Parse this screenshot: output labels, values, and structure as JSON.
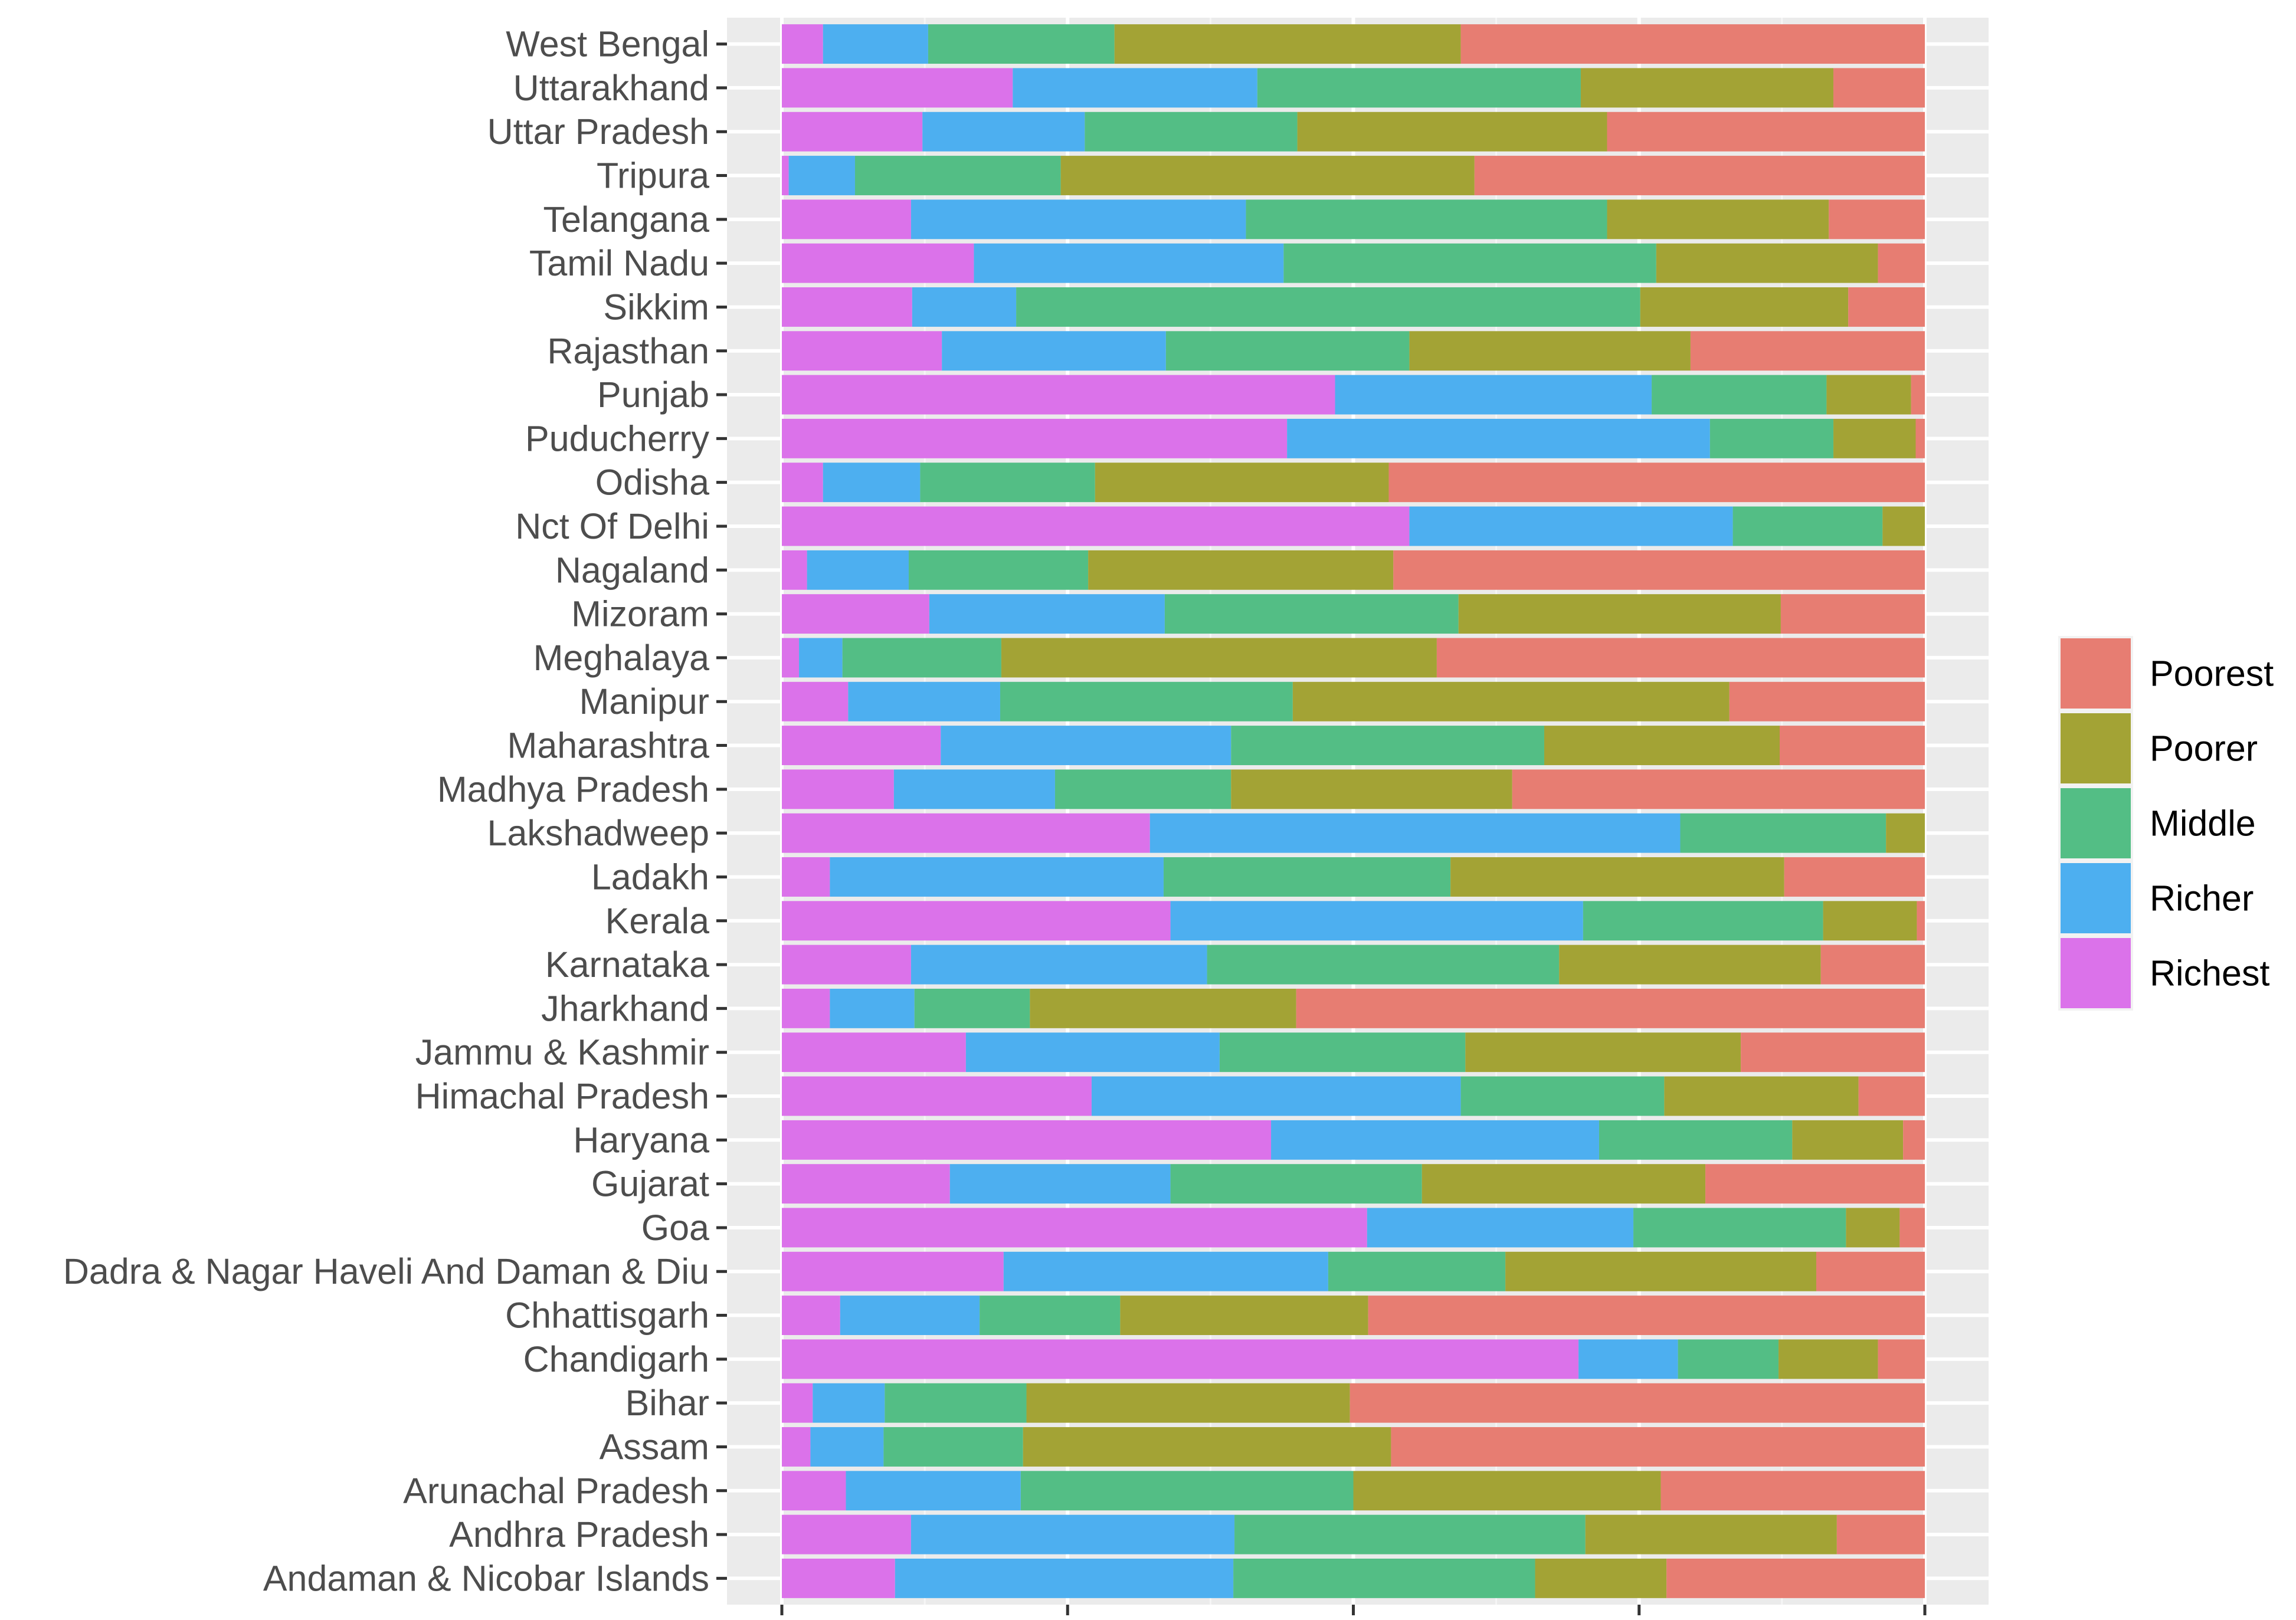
{
  "chart_data": {
    "type": "bar",
    "orientation": "horizontal",
    "stacked": "fill",
    "xlabel": "",
    "ylabel": "",
    "xlim": [
      0,
      1
    ],
    "grid": true,
    "legend_position": "right",
    "categories": [
      "West Bengal",
      "Uttarakhand",
      "Uttar Pradesh",
      "Tripura",
      "Telangana",
      "Tamil Nadu",
      "Sikkim",
      "Rajasthan",
      "Punjab",
      "Puducherry",
      "Odisha",
      "Nct Of Delhi",
      "Nagaland",
      "Mizoram",
      "Meghalaya",
      "Manipur",
      "Maharashtra",
      "Madhya Pradesh",
      "Lakshadweep",
      "Ladakh",
      "Kerala",
      "Karnataka",
      "Jharkhand",
      "Jammu & Kashmir",
      "Himachal Pradesh",
      "Haryana",
      "Gujarat",
      "Goa",
      "Dadra & Nagar Haveli And Daman & Diu",
      "Chhattisgarh",
      "Chandigarh",
      "Bihar",
      "Assam",
      "Arunachal Pradesh",
      "Andhra Pradesh",
      "Andaman & Nicobar Islands"
    ],
    "series": [
      {
        "name": "Richest",
        "color": "#DB72EA",
        "values": [
          0.036,
          0.202,
          0.123,
          0.006,
          0.113,
          0.168,
          0.114,
          0.14,
          0.484,
          0.442,
          0.036,
          0.549,
          0.022,
          0.129,
          0.015,
          0.058,
          0.139,
          0.098,
          0.322,
          0.042,
          0.34,
          0.113,
          0.042,
          0.161,
          0.271,
          0.428,
          0.147,
          0.512,
          0.194,
          0.051,
          0.697,
          0.027,
          0.025,
          0.056,
          0.113,
          0.099
        ]
      },
      {
        "name": "Richer",
        "color": "#4DAFF0",
        "values": [
          0.092,
          0.214,
          0.142,
          0.058,
          0.293,
          0.271,
          0.091,
          0.196,
          0.277,
          0.37,
          0.085,
          0.283,
          0.089,
          0.206,
          0.038,
          0.133,
          0.254,
          0.141,
          0.464,
          0.292,
          0.361,
          0.259,
          0.074,
          0.222,
          0.323,
          0.287,
          0.193,
          0.233,
          0.284,
          0.122,
          0.087,
          0.063,
          0.064,
          0.153,
          0.283,
          0.296
        ]
      },
      {
        "name": "Middle",
        "color": "#53BE85",
        "values": [
          0.163,
          0.283,
          0.186,
          0.18,
          0.316,
          0.326,
          0.546,
          0.213,
          0.153,
          0.108,
          0.153,
          0.131,
          0.157,
          0.257,
          0.139,
          0.256,
          0.274,
          0.154,
          0.18,
          0.251,
          0.21,
          0.308,
          0.101,
          0.215,
          0.178,
          0.169,
          0.22,
          0.186,
          0.155,
          0.123,
          0.088,
          0.124,
          0.122,
          0.291,
          0.307,
          0.264
        ]
      },
      {
        "name": "Poorer",
        "color": "#A3A335",
        "values": [
          0.303,
          0.221,
          0.271,
          0.362,
          0.194,
          0.194,
          0.182,
          0.246,
          0.074,
          0.072,
          0.257,
          0.037,
          0.267,
          0.282,
          0.381,
          0.382,
          0.206,
          0.246,
          0.034,
          0.292,
          0.082,
          0.229,
          0.233,
          0.241,
          0.17,
          0.097,
          0.248,
          0.047,
          0.272,
          0.217,
          0.087,
          0.283,
          0.322,
          0.269,
          0.22,
          0.115
        ]
      },
      {
        "name": "Poorest",
        "color": "#E77D72",
        "values": [
          0.406,
          0.08,
          0.278,
          0.394,
          0.084,
          0.041,
          0.067,
          0.205,
          0.012,
          0.008,
          0.469,
          0.0,
          0.465,
          0.126,
          0.427,
          0.171,
          0.127,
          0.361,
          0.0,
          0.123,
          0.007,
          0.091,
          0.55,
          0.161,
          0.058,
          0.019,
          0.192,
          0.022,
          0.095,
          0.487,
          0.041,
          0.503,
          0.467,
          0.231,
          0.077,
          0.226
        ]
      }
    ],
    "legend_order": [
      "Poorest",
      "Poorer",
      "Middle",
      "Richer",
      "Richest"
    ]
  },
  "colors": {
    "panel_background": "#EBEBEB",
    "grid_major": "#FFFFFF",
    "grid_minor": "#F5F5F5",
    "axis_text": "#4D4D4D",
    "tick": "#333333"
  }
}
